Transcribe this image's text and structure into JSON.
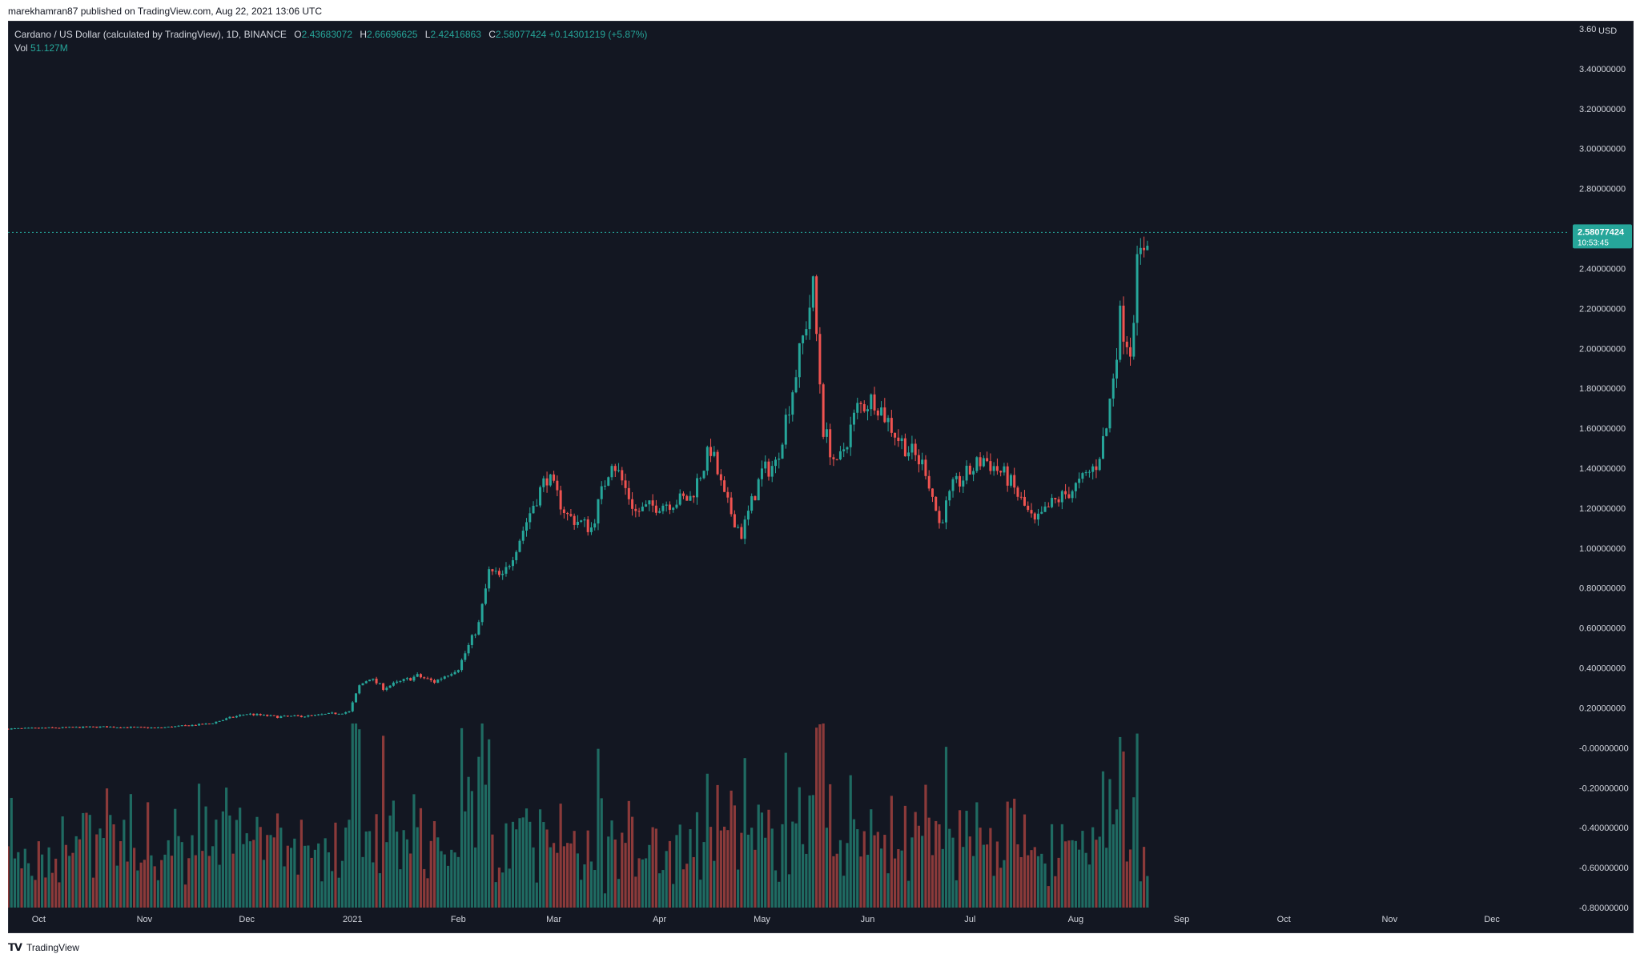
{
  "header": {
    "published": "marekhamran87 published on TradingView.com, Aug 22, 2021 13:06 UTC"
  },
  "legend": {
    "symbol": "Cardano / US Dollar (calculated by TradingView), 1D, BINANCE",
    "o_label": "O",
    "o_val": "2.43683072",
    "h_label": "H",
    "h_val": "2.66696625",
    "l_label": "L",
    "l_val": "2.42416863",
    "c_label": "C",
    "c_val": "2.58077424",
    "change": "+0.14301219 (+5.87%)",
    "vol_label": "Vol",
    "vol_val": "51.127M"
  },
  "footer": {
    "brand": "TradingView",
    "logo_icon": "tradingview-logo-icon"
  },
  "colors": {
    "bg": "#131722",
    "up": "#26a69a",
    "down": "#ef5350",
    "vol_up": "#1f6b62",
    "vol_down": "#8b3a3a",
    "axis_text": "#d1d4dc",
    "grid": "#1e222d"
  },
  "chart_data": {
    "type": "candlestick",
    "symbol": "ADAUSD",
    "interval": "1D",
    "exchange": "BINANCE",
    "ylim": [
      -0.8,
      3.6
    ],
    "y_ticks": [
      "3.60000000",
      "3.40000000",
      "3.20000000",
      "3.00000000",
      "2.80000000",
      "2.60000000",
      "2.40000000",
      "2.20000000",
      "2.00000000",
      "1.80000000",
      "1.60000000",
      "1.40000000",
      "1.20000000",
      "1.00000000",
      "0.80000000",
      "0.60000000",
      "0.40000000",
      "0.20000000",
      "-0.00000000",
      "-0.20000000",
      "-0.40000000",
      "-0.60000000",
      "-0.80000000"
    ],
    "y_ticks_shown": [
      3.4,
      3.2,
      3.0,
      2.8,
      2.4,
      2.2,
      2.0,
      1.8,
      1.6,
      1.4,
      1.2,
      1.0,
      0.8,
      0.6,
      0.4,
      0.2,
      0.0,
      -0.2,
      -0.4,
      -0.6,
      -0.8
    ],
    "y_ticks_hidden_near_top_label": [
      3.6
    ],
    "y_top_partial_label": "3.60",
    "y_unit": "USD",
    "x_ticks": [
      "Oct",
      "Nov",
      "Dec",
      "2021",
      "Feb",
      "Mar",
      "Apr",
      "May",
      "Jun",
      "Jul",
      "Aug",
      "Sep",
      "Oct",
      "Nov",
      "Dec"
    ],
    "last_price_label": "2.58077424",
    "last_price_value": 2.58077424,
    "countdown": "10:53:45",
    "price_anchors": [
      [
        "2020-09-22",
        0.095
      ],
      [
        "2020-10-05",
        0.1
      ],
      [
        "2020-10-20",
        0.105
      ],
      [
        "2020-11-05",
        0.1
      ],
      [
        "2020-11-20",
        0.12
      ],
      [
        "2020-11-26",
        0.15
      ],
      [
        "2020-12-01",
        0.17
      ],
      [
        "2020-12-10",
        0.155
      ],
      [
        "2020-12-20",
        0.16
      ],
      [
        "2020-12-31",
        0.18
      ],
      [
        "2021-01-03",
        0.31
      ],
      [
        "2021-01-06",
        0.35
      ],
      [
        "2021-01-10",
        0.3
      ],
      [
        "2021-01-20",
        0.36
      ],
      [
        "2021-01-25",
        0.33
      ],
      [
        "2021-02-01",
        0.4
      ],
      [
        "2021-02-07",
        0.62
      ],
      [
        "2021-02-10",
        0.88
      ],
      [
        "2021-02-14",
        0.85
      ],
      [
        "2021-02-19",
        1.05
      ],
      [
        "2021-02-23",
        1.22
      ],
      [
        "2021-02-27",
        1.36
      ],
      [
        "2021-03-05",
        1.16
      ],
      [
        "2021-03-12",
        1.1
      ],
      [
        "2021-03-18",
        1.45
      ],
      [
        "2021-03-25",
        1.18
      ],
      [
        "2021-04-01",
        1.22
      ],
      [
        "2021-04-10",
        1.25
      ],
      [
        "2021-04-16",
        1.5
      ],
      [
        "2021-04-20",
        1.25
      ],
      [
        "2021-04-25",
        1.07
      ],
      [
        "2021-05-01",
        1.38
      ],
      [
        "2021-05-05",
        1.42
      ],
      [
        "2021-05-10",
        1.8
      ],
      [
        "2021-05-16",
        2.3
      ],
      [
        "2021-05-19",
        1.6
      ],
      [
        "2021-05-23",
        1.4
      ],
      [
        "2021-05-29",
        1.7
      ],
      [
        "2021-06-03",
        1.75
      ],
      [
        "2021-06-10",
        1.55
      ],
      [
        "2021-06-18",
        1.4
      ],
      [
        "2021-06-22",
        1.12
      ],
      [
        "2021-06-26",
        1.3
      ],
      [
        "2021-07-05",
        1.45
      ],
      [
        "2021-07-12",
        1.35
      ],
      [
        "2021-07-20",
        1.12
      ],
      [
        "2021-07-25",
        1.22
      ],
      [
        "2021-08-02",
        1.32
      ],
      [
        "2021-08-07",
        1.42
      ],
      [
        "2021-08-10",
        1.6
      ],
      [
        "2021-08-14",
        2.15
      ],
      [
        "2021-08-17",
        2.0
      ],
      [
        "2021-08-19",
        2.4
      ],
      [
        "2021-08-22",
        2.58
      ]
    ],
    "volume_note": "Volume pane overlaid at bottom of chart, Vol 51.127M (last)"
  }
}
